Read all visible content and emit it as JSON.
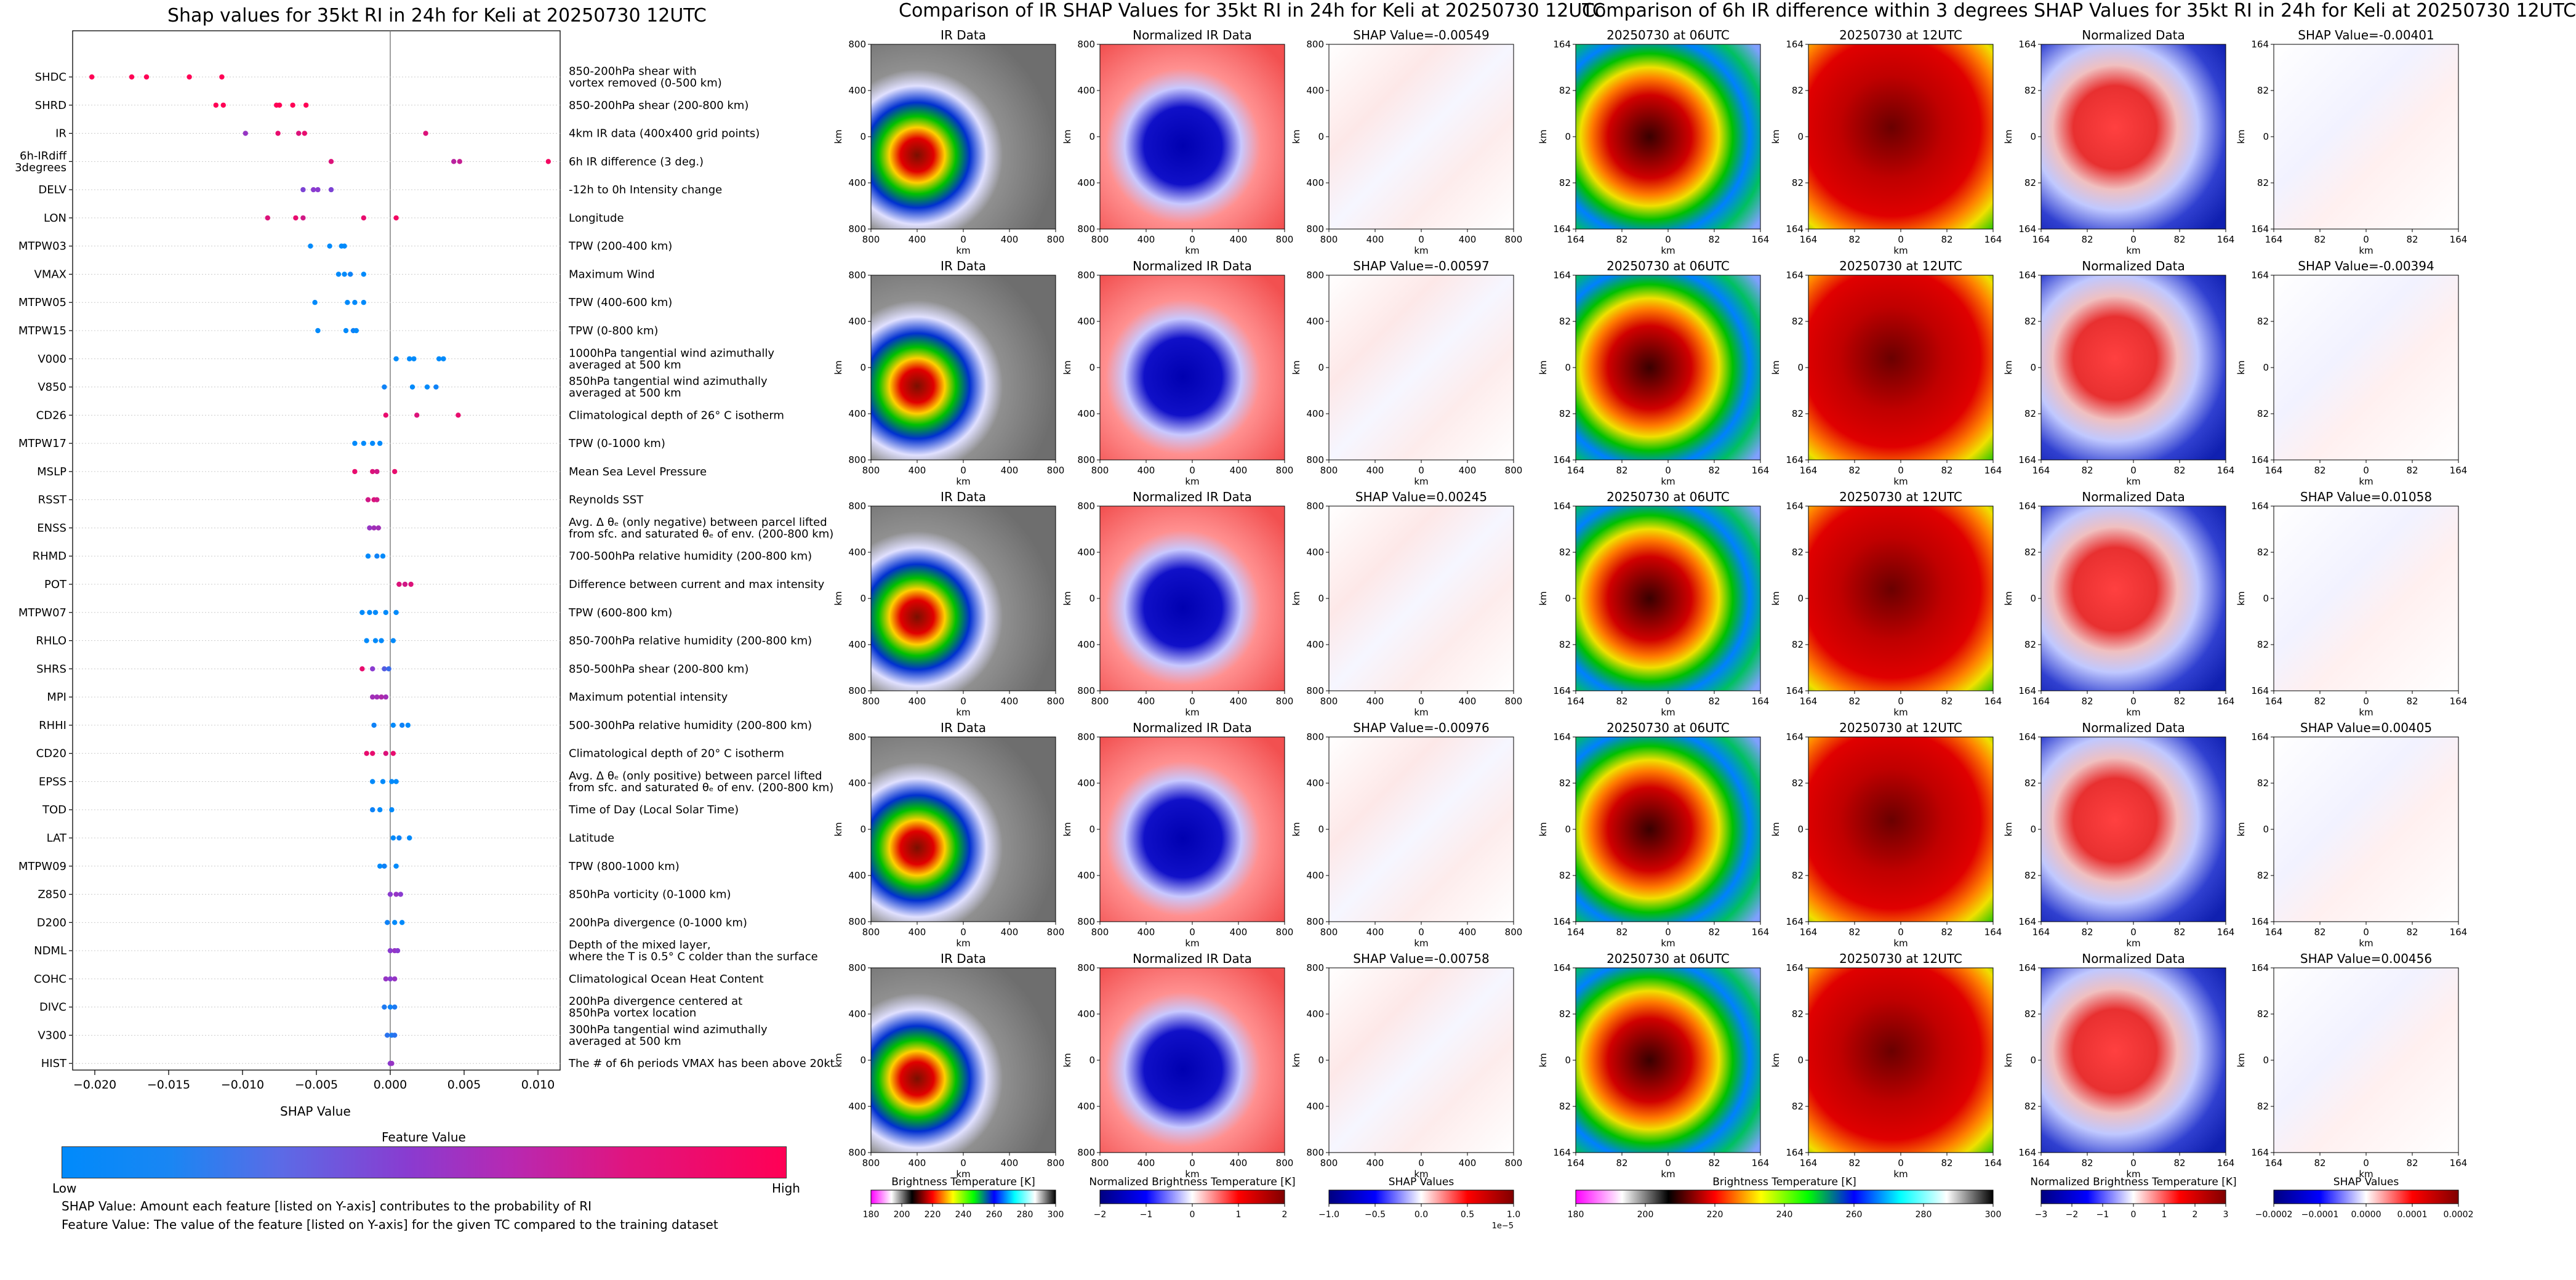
{
  "colors": {
    "feature_low": "#008afb",
    "feature_mid": "#8a3bd0",
    "feature_high": "#ff0055"
  },
  "summary_panel": {
    "title": "Shap values for 35kt RI in 24h for Keli at 20250730 12UTC",
    "xlabel": "SHAP Value",
    "colorbar_title": "Feature Value",
    "colorbar_low": "Low",
    "colorbar_high": "High",
    "footnote_1": "SHAP Value: Amount each feature [listed on Y-axis] contributes to the probability of RI",
    "footnote_2": "Feature Value: The value of the feature [listed on Y-axis] for the given TC compared to the training dataset"
  },
  "ir_panel": {
    "title": "Comparison of IR SHAP Values for 35kt RI in 24h for Keli at 20250730 12UTC",
    "col_titles": [
      "IR Data",
      "Normalized IR Data"
    ],
    "shap_titles": [
      "SHAP Value=-0.00549",
      "SHAP Value=-0.00597",
      "SHAP Value=0.00245",
      "SHAP Value=-0.00976",
      "SHAP Value=-0.00758"
    ],
    "axis_label": "km",
    "ticks": [
      "800",
      "400",
      "0",
      "400",
      "800"
    ],
    "cbar_labels": [
      "Brightness Temperature [K]",
      "Normalized Brightness Temperature [K]",
      "SHAP Values"
    ],
    "cbar1_ticks": [
      "180",
      "200",
      "220",
      "240",
      "260",
      "280",
      "300"
    ],
    "cbar2_ticks": [
      "−2",
      "−1",
      "0",
      "1",
      "2"
    ],
    "cbar3_ticks": [
      "−1.0",
      "−0.5",
      "0.0",
      "0.5",
      "1.0"
    ],
    "cbar3_exp": "1e−5"
  },
  "diff_panel": {
    "title": "Comparison of 6h IR difference within 3 degrees SHAP Values for 35kt RI in 24h for Keli at 20250730 12UTC",
    "col_titles": [
      "20250730 at 06UTC",
      "20250730 at 12UTC",
      "Normalized Data"
    ],
    "shap_titles": [
      "SHAP Value=-0.00401",
      "SHAP Value=-0.00394",
      "SHAP Value=0.01058",
      "SHAP Value=0.00405",
      "SHAP Value=0.00456"
    ],
    "axis_label": "km",
    "ticks": [
      "164",
      "82",
      "0",
      "82",
      "164"
    ],
    "cbar_labels": [
      "Brightness Temperature [K]",
      "Normalized Brightness Temperature [K]",
      "SHAP Values"
    ],
    "cbar1_ticks": [
      "180",
      "200",
      "220",
      "240",
      "260",
      "280",
      "300"
    ],
    "cbar2_ticks": [
      "−3",
      "−2",
      "−1",
      "0",
      "1",
      "2",
      "3"
    ],
    "cbar3_ticks": [
      "−0.0002",
      "−0.0001",
      "0.0000",
      "0.0001",
      "0.0002"
    ]
  },
  "chart_data": {
    "type": "scatter",
    "title": "Shap values for 35kt RI in 24h for Keli at 20250730 12UTC",
    "xlabel": "SHAP Value",
    "ylabel": "",
    "xlim": [
      -0.0215,
      0.0115
    ],
    "xticks": [
      -0.02,
      -0.015,
      -0.01,
      -0.005,
      0.0,
      0.005,
      0.01
    ],
    "xtick_labels": [
      "−0.020",
      "−0.015",
      "−0.010",
      "−0.005",
      "0.000",
      "0.005",
      "0.010"
    ],
    "grid": false,
    "color_encoding": "feature value (low → high)",
    "features": [
      {
        "name": "SHDC",
        "desc": [
          "850-200hPa shear with",
          "vortex removed (0-500 km)"
        ],
        "points": [
          [
            -0.0202,
            1
          ],
          [
            -0.0175,
            1
          ],
          [
            -0.0165,
            1
          ],
          [
            -0.0136,
            1
          ],
          [
            -0.0114,
            1
          ]
        ]
      },
      {
        "name": "SHRD",
        "desc": [
          "850-200hPa shear (200-800 km)"
        ],
        "points": [
          [
            -0.0118,
            1
          ],
          [
            -0.0113,
            1
          ],
          [
            -0.0077,
            1
          ],
          [
            -0.0075,
            1
          ],
          [
            -0.0066,
            1
          ],
          [
            -0.0057,
            1
          ]
        ]
      },
      {
        "name": "IR",
        "desc": [
          "4km IR data (400x400 grid points)"
        ],
        "points": [
          [
            -0.0098,
            0.55
          ],
          [
            -0.0076,
            0.9
          ],
          [
            -0.0062,
            0.85
          ],
          [
            -0.0058,
            0.9
          ],
          [
            0.0024,
            0.85
          ]
        ]
      },
      {
        "name": "6h-IRdiff\n3degrees",
        "desc": [
          "6h IR difference (3 deg.)"
        ],
        "points": [
          [
            -0.004,
            0.85
          ],
          [
            0.0043,
            0.7
          ],
          [
            0.0047,
            0.75
          ],
          [
            0.0107,
            0.95
          ]
        ]
      },
      {
        "name": "DELV",
        "desc": [
          "-12h to 0h Intensity change"
        ],
        "points": [
          [
            -0.0059,
            0.45
          ],
          [
            -0.0052,
            0.5
          ],
          [
            -0.0049,
            0.5
          ],
          [
            -0.004,
            0.45
          ]
        ]
      },
      {
        "name": "LON",
        "desc": [
          "Longitude"
        ],
        "points": [
          [
            -0.0083,
            0.85
          ],
          [
            -0.0064,
            0.9
          ],
          [
            -0.0059,
            0.8
          ],
          [
            -0.0018,
            0.9
          ],
          [
            0.0004,
            0.95
          ]
        ]
      },
      {
        "name": "MTPW03",
        "desc": [
          "TPW (200-400 km)"
        ],
        "points": [
          [
            -0.0054,
            0
          ],
          [
            -0.0041,
            0
          ],
          [
            -0.0033,
            0
          ],
          [
            -0.0031,
            0
          ]
        ]
      },
      {
        "name": "VMAX",
        "desc": [
          "Maximum Wind"
        ],
        "points": [
          [
            -0.0035,
            0
          ],
          [
            -0.0031,
            0
          ],
          [
            -0.0027,
            0.05
          ],
          [
            -0.0018,
            0
          ]
        ]
      },
      {
        "name": "MTPW05",
        "desc": [
          "TPW (400-600 km)"
        ],
        "points": [
          [
            -0.0051,
            0
          ],
          [
            -0.0029,
            0
          ],
          [
            -0.0024,
            0
          ],
          [
            -0.0018,
            0
          ]
        ]
      },
      {
        "name": "MTPW15",
        "desc": [
          "TPW (0-800 km)"
        ],
        "points": [
          [
            -0.0049,
            0
          ],
          [
            -0.003,
            0
          ],
          [
            -0.0025,
            0.05
          ],
          [
            -0.0023,
            0
          ]
        ]
      },
      {
        "name": "V000",
        "desc": [
          "1000hPa tangential wind azimuthally",
          "averaged at 500 km"
        ],
        "points": [
          [
            0.0004,
            0
          ],
          [
            0.0013,
            0
          ],
          [
            0.0016,
            0
          ],
          [
            0.0033,
            0
          ],
          [
            0.0036,
            0
          ]
        ]
      },
      {
        "name": "V850",
        "desc": [
          "850hPa tangential wind azimuthally",
          "averaged at 500 km"
        ],
        "points": [
          [
            -0.0004,
            0.05
          ],
          [
            0.0015,
            0
          ],
          [
            0.0025,
            0
          ],
          [
            0.0031,
            0.05
          ]
        ]
      },
      {
        "name": "CD26",
        "desc": [
          "Climatological depth of 26° C isotherm"
        ],
        "points": [
          [
            -0.0003,
            0.9
          ],
          [
            0.0018,
            0.85
          ],
          [
            0.0046,
            0.9
          ]
        ]
      },
      {
        "name": "MTPW17",
        "desc": [
          "TPW (0-1000 km)"
        ],
        "points": [
          [
            -0.0024,
            0
          ],
          [
            -0.0018,
            0
          ],
          [
            -0.0012,
            0
          ],
          [
            -0.0007,
            0
          ]
        ]
      },
      {
        "name": "MSLP",
        "desc": [
          "Mean Sea Level Pressure"
        ],
        "points": [
          [
            -0.0024,
            0.9
          ],
          [
            -0.0012,
            0.85
          ],
          [
            -0.0009,
            0.8
          ],
          [
            0.0003,
            0.9
          ]
        ]
      },
      {
        "name": "RSST",
        "desc": [
          "Reynolds SST"
        ],
        "points": [
          [
            -0.0015,
            0.8
          ],
          [
            -0.0011,
            0.85
          ],
          [
            -0.0009,
            0.8
          ]
        ]
      },
      {
        "name": "ENSS",
        "desc": [
          "Avg. Δ θₑ (only negative) between parcel lifted",
          "from sfc. and saturated θₑ of env. (200-800 km)"
        ],
        "points": [
          [
            -0.0014,
            0.55
          ],
          [
            -0.0011,
            0.6
          ],
          [
            -0.0008,
            0.6
          ]
        ]
      },
      {
        "name": "RHMD",
        "desc": [
          "700-500hPa relative humidity (200-800 km)"
        ],
        "points": [
          [
            -0.0015,
            0
          ],
          [
            -0.0009,
            0.05
          ],
          [
            -0.0005,
            0
          ]
        ]
      },
      {
        "name": "POT",
        "desc": [
          "Difference between current and max intensity"
        ],
        "points": [
          [
            0.0006,
            0.85
          ],
          [
            0.001,
            0.8
          ],
          [
            0.0014,
            0.85
          ]
        ]
      },
      {
        "name": "MTPW07",
        "desc": [
          "TPW (600-800 km)"
        ],
        "points": [
          [
            -0.0019,
            0
          ],
          [
            -0.0014,
            0
          ],
          [
            -0.001,
            0
          ],
          [
            -0.0003,
            0
          ],
          [
            0.0004,
            0
          ]
        ]
      },
      {
        "name": "RHLO",
        "desc": [
          "850-700hPa relative humidity (200-800 km)"
        ],
        "points": [
          [
            -0.0016,
            0
          ],
          [
            -0.001,
            0
          ],
          [
            -0.0006,
            0
          ],
          [
            0.0002,
            0
          ]
        ]
      },
      {
        "name": "SHRS",
        "desc": [
          "850-500hPa shear (200-800 km)"
        ],
        "points": [
          [
            -0.0019,
            0.9
          ],
          [
            -0.0012,
            0.5
          ],
          [
            -0.0004,
            0.3
          ],
          [
            -0.0001,
            0.2
          ]
        ]
      },
      {
        "name": "MPI",
        "desc": [
          "Maximum potential intensity"
        ],
        "points": [
          [
            -0.0012,
            0.6
          ],
          [
            -0.0009,
            0.6
          ],
          [
            -0.0006,
            0.65
          ],
          [
            -0.0003,
            0.6
          ]
        ]
      },
      {
        "name": "RHHI",
        "desc": [
          "500-300hPa relative humidity (200-800 km)"
        ],
        "points": [
          [
            -0.0011,
            0.05
          ],
          [
            0.0002,
            0
          ],
          [
            0.0008,
            0.05
          ],
          [
            0.0012,
            0
          ]
        ]
      },
      {
        "name": "CD20",
        "desc": [
          "Climatological depth of 20° C isotherm"
        ],
        "points": [
          [
            -0.0016,
            0.9
          ],
          [
            -0.0012,
            0.9
          ],
          [
            -0.0003,
            0.85
          ],
          [
            0.0002,
            0.9
          ]
        ]
      },
      {
        "name": "EPSS",
        "desc": [
          "Avg. Δ θₑ (only positive) between parcel lifted",
          "from sfc. and saturated θₑ of env. (200-800 km)"
        ],
        "points": [
          [
            -0.0012,
            0
          ],
          [
            -0.0005,
            0
          ],
          [
            0.0001,
            0
          ],
          [
            0.0004,
            0
          ]
        ]
      },
      {
        "name": "TOD",
        "desc": [
          "Time of Day (Local Solar Time)"
        ],
        "points": [
          [
            -0.0012,
            0.05
          ],
          [
            -0.0007,
            0
          ],
          [
            0.0001,
            0
          ]
        ]
      },
      {
        "name": "LAT",
        "desc": [
          "Latitude"
        ],
        "points": [
          [
            0.0002,
            0
          ],
          [
            0.0006,
            0.05
          ],
          [
            0.0013,
            0
          ]
        ]
      },
      {
        "name": "MTPW09",
        "desc": [
          "TPW (800-1000 km)"
        ],
        "points": [
          [
            -0.0007,
            0
          ],
          [
            -0.0004,
            0.05
          ],
          [
            0.0004,
            0
          ]
        ]
      },
      {
        "name": "Z850",
        "desc": [
          "850hPa vorticity (0-1000 km)"
        ],
        "points": [
          [
            0.0,
            0.5
          ],
          [
            0.0004,
            0.55
          ],
          [
            0.0007,
            0.5
          ]
        ]
      },
      {
        "name": "D200",
        "desc": [
          "200hPa divergence (0-1000 km)"
        ],
        "points": [
          [
            -0.0002,
            0.05
          ],
          [
            0.0003,
            0
          ],
          [
            0.0008,
            0
          ]
        ]
      },
      {
        "name": "NDML",
        "desc": [
          "Depth of the mixed layer,",
          "where the T is 0.5° C colder than the surface"
        ],
        "points": [
          [
            0.0,
            0.5
          ],
          [
            0.0003,
            0.55
          ],
          [
            0.0005,
            0.5
          ]
        ]
      },
      {
        "name": "COHC",
        "desc": [
          "Climatological Ocean Heat Content"
        ],
        "points": [
          [
            -0.0003,
            0.55
          ],
          [
            0.0,
            0.5
          ],
          [
            0.0003,
            0.55
          ]
        ]
      },
      {
        "name": "DIVC",
        "desc": [
          "200hPa divergence centered at",
          "850hPa vortex location"
        ],
        "points": [
          [
            -0.0004,
            0.1
          ],
          [
            0.0,
            0.05
          ],
          [
            0.0003,
            0.1
          ]
        ]
      },
      {
        "name": "V300",
        "desc": [
          "300hPa tangential wind azimuthally",
          "averaged at 500 km"
        ],
        "points": [
          [
            -0.0002,
            0.15
          ],
          [
            0.0001,
            0.1
          ],
          [
            0.0003,
            0.15
          ]
        ]
      },
      {
        "name": "HIST",
        "desc": [
          "The # of 6h periods VMAX has been above 20kt"
        ],
        "points": [
          [
            0.0,
            0.5
          ],
          [
            0.0001,
            0.55
          ]
        ]
      }
    ]
  }
}
